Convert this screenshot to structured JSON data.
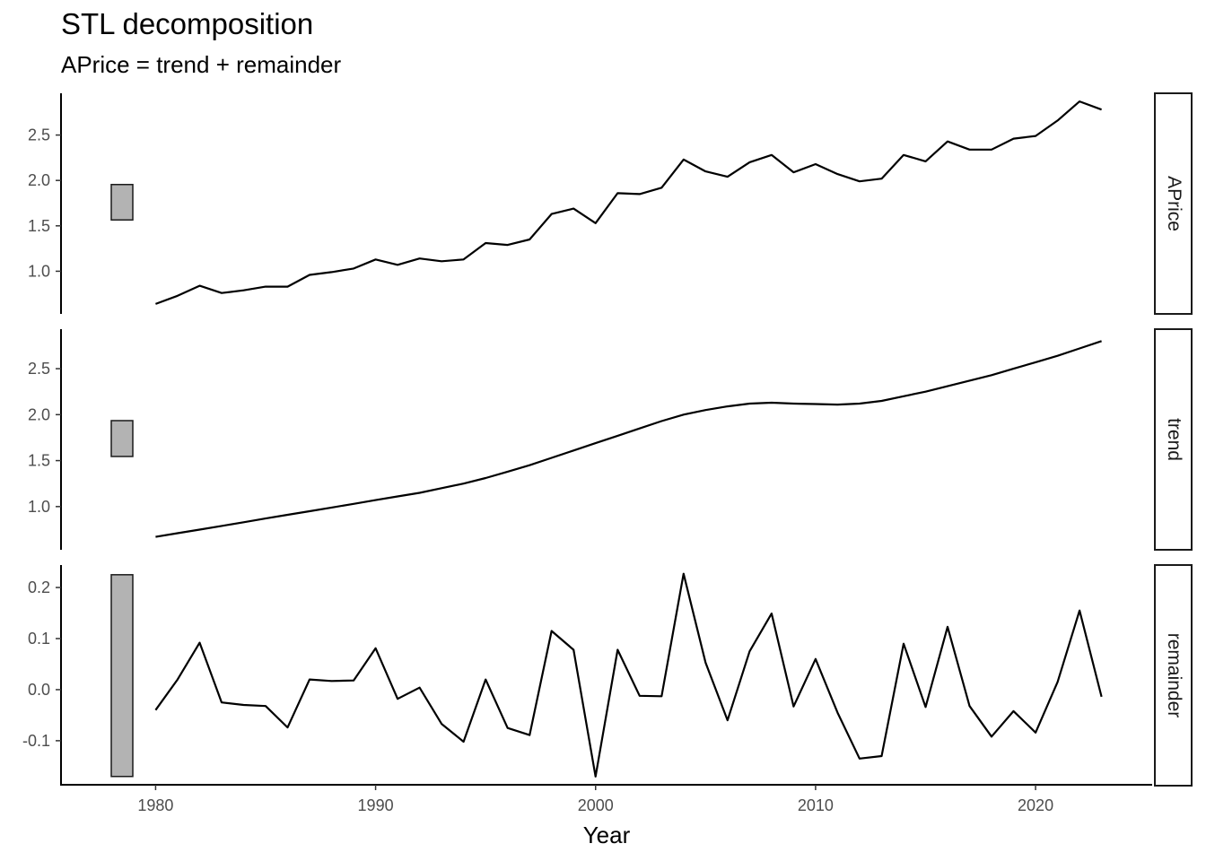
{
  "title": "STL decomposition",
  "subtitle": "APrice = trend + remainder",
  "colors": {
    "line": "#000000",
    "scale_bar": "#b3b3b3",
    "axis": "#000000",
    "tick_text": "#4d4d4d"
  },
  "chart_data": {
    "type": "line",
    "xlabel": "Year",
    "x": [
      1980,
      1981,
      1982,
      1983,
      1984,
      1985,
      1986,
      1987,
      1988,
      1989,
      1990,
      1991,
      1992,
      1993,
      1994,
      1995,
      1996,
      1997,
      1998,
      1999,
      2000,
      2001,
      2002,
      2003,
      2004,
      2005,
      2006,
      2007,
      2008,
      2009,
      2010,
      2011,
      2012,
      2013,
      2014,
      2015,
      2016,
      2017,
      2018,
      2019,
      2020,
      2021,
      2022,
      2023
    ],
    "xlim": [
      1975.7,
      2025.3
    ],
    "xticks": [
      1980,
      1990,
      2000,
      2010,
      2020
    ],
    "grid": false,
    "panels": [
      {
        "name": "APrice",
        "strip_label": "APrice",
        "ylim": [
          0.53,
          2.96
        ],
        "yticks": [
          1.0,
          1.5,
          2.0,
          2.5
        ],
        "ytick_labels": [
          "1.0",
          "1.5",
          "2.0",
          "2.5"
        ],
        "scale_bar": [
          1.565,
          1.955
        ],
        "values": [
          0.64,
          0.73,
          0.84,
          0.76,
          0.79,
          0.83,
          0.83,
          0.96,
          0.99,
          1.03,
          1.13,
          1.07,
          1.14,
          1.11,
          1.13,
          1.31,
          1.29,
          1.35,
          1.63,
          1.69,
          1.53,
          1.86,
          1.85,
          1.92,
          2.23,
          2.1,
          2.04,
          2.2,
          2.28,
          2.09,
          2.18,
          2.07,
          1.99,
          2.02,
          2.28,
          2.21,
          2.43,
          2.34,
          2.34,
          2.46,
          2.49,
          2.66,
          2.87,
          2.78
        ]
      },
      {
        "name": "trend",
        "strip_label": "trend",
        "ylim": [
          0.53,
          2.93
        ],
        "yticks": [
          1.0,
          1.5,
          2.0,
          2.5
        ],
        "ytick_labels": [
          "1.0",
          "1.5",
          "2.0",
          "2.5"
        ],
        "scale_bar": [
          1.545,
          1.935
        ],
        "values": [
          0.67,
          0.71,
          0.75,
          0.79,
          0.83,
          0.87,
          0.91,
          0.95,
          0.99,
          1.03,
          1.07,
          1.11,
          1.15,
          1.2,
          1.25,
          1.31,
          1.38,
          1.45,
          1.53,
          1.61,
          1.69,
          1.77,
          1.85,
          1.93,
          2.0,
          2.05,
          2.09,
          2.12,
          2.13,
          2.12,
          2.115,
          2.11,
          2.12,
          2.15,
          2.2,
          2.25,
          2.31,
          2.37,
          2.43,
          2.5,
          2.57,
          2.64,
          2.72,
          2.8
        ]
      },
      {
        "name": "remainder",
        "strip_label": "remainder",
        "ylim": [
          -0.188,
          0.244
        ],
        "yticks": [
          -0.1,
          0.0,
          0.1,
          0.2
        ],
        "ytick_labels": [
          "-0.1",
          "0.0",
          "0.1",
          "0.2"
        ],
        "scale_bar": [
          -0.17,
          0.225
        ],
        "values": [
          -0.04,
          0.02,
          0.092,
          -0.025,
          -0.03,
          -0.032,
          -0.074,
          0.02,
          0.017,
          0.018,
          0.081,
          -0.018,
          0.004,
          -0.067,
          -0.102,
          0.02,
          -0.075,
          -0.089,
          0.115,
          0.078,
          -0.17,
          0.078,
          -0.012,
          -0.013,
          0.227,
          0.053,
          -0.06,
          0.075,
          0.149,
          -0.033,
          0.06,
          -0.045,
          -0.135,
          -0.13,
          0.09,
          -0.034,
          0.123,
          -0.032,
          -0.092,
          -0.042,
          -0.084,
          0.015,
          0.155,
          -0.014
        ]
      }
    ]
  }
}
